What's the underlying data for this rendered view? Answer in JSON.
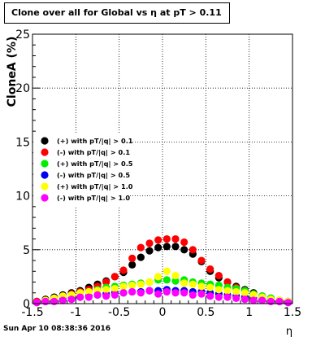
{
  "title": "Clone  over all for Global vs   η at pT > 0.11",
  "footer_date": "Sun Apr 10 08:38:36 2016",
  "chart_data": {
    "type": "scatter",
    "xlabel": "η",
    "ylabel": "CloneA (%)",
    "xlim": [
      -1.5,
      1.5
    ],
    "ylim": [
      0,
      25
    ],
    "xticks": [
      -1.5,
      -1,
      -0.5,
      0,
      0.5,
      1,
      1.5
    ],
    "xtick_labels": [
      "-1.5",
      "-1",
      "-0.5",
      "0",
      "0.5",
      "1",
      "1.5"
    ],
    "yticks": [
      0,
      5,
      10,
      15,
      20,
      25
    ],
    "ytick_labels": [
      "0",
      "5",
      "10",
      "15",
      "20",
      "25"
    ],
    "grid": true,
    "legend_position": "left",
    "series": [
      {
        "name": "(+) with pT/|q| > 0.1",
        "color": "#000000",
        "x": [
          -1.45,
          -1.35,
          -1.25,
          -1.15,
          -1.05,
          -0.95,
          -0.85,
          -0.75,
          -0.65,
          -0.55,
          -0.45,
          -0.35,
          -0.25,
          -0.15,
          -0.05,
          0.05,
          0.15,
          0.25,
          0.35,
          0.45,
          0.55,
          0.65,
          0.75,
          0.85,
          0.95,
          1.05,
          1.15,
          1.25,
          1.35,
          1.45
        ],
        "y": [
          0.2,
          0.4,
          0.6,
          0.8,
          1.0,
          1.2,
          1.5,
          1.8,
          2.1,
          2.5,
          2.9,
          3.6,
          4.3,
          4.9,
          5.2,
          5.3,
          5.3,
          5.0,
          4.6,
          3.9,
          3.0,
          2.4,
          2.0,
          1.6,
          1.3,
          1.0,
          0.7,
          0.5,
          0.3,
          0.2
        ]
      },
      {
        "name": "(-) with pT/|q| > 0.1",
        "color": "#ff0000",
        "x": [
          -1.45,
          -1.35,
          -1.25,
          -1.15,
          -1.05,
          -0.95,
          -0.85,
          -0.75,
          -0.65,
          -0.55,
          -0.45,
          -0.35,
          -0.25,
          -0.15,
          -0.05,
          0.05,
          0.15,
          0.25,
          0.35,
          0.45,
          0.55,
          0.65,
          0.75,
          0.85,
          0.95,
          1.05,
          1.15,
          1.25,
          1.35,
          1.45
        ],
        "y": [
          0.2,
          0.3,
          0.5,
          0.7,
          0.9,
          1.1,
          1.3,
          1.6,
          2.0,
          2.5,
          3.1,
          4.2,
          5.2,
          5.6,
          5.9,
          6.0,
          6.0,
          5.7,
          5.0,
          4.0,
          3.2,
          2.6,
          2.0,
          1.5,
          1.2,
          0.9,
          0.6,
          0.4,
          0.3,
          0.2
        ]
      },
      {
        "name": "(+) with pT/|q| > 0.5",
        "color": "#00ee00",
        "x": [
          -1.45,
          -1.35,
          -1.25,
          -1.15,
          -1.05,
          -0.95,
          -0.85,
          -0.75,
          -0.65,
          -0.55,
          -0.45,
          -0.35,
          -0.25,
          -0.15,
          -0.05,
          0.05,
          0.15,
          0.25,
          0.35,
          0.45,
          0.55,
          0.65,
          0.75,
          0.85,
          0.95,
          1.05,
          1.15,
          1.25,
          1.35,
          1.45
        ],
        "y": [
          0.1,
          0.3,
          0.4,
          0.6,
          0.8,
          1.0,
          1.1,
          1.3,
          1.5,
          1.6,
          1.7,
          1.8,
          1.9,
          2.0,
          2.2,
          2.2,
          2.1,
          2.2,
          2.0,
          1.9,
          1.8,
          1.7,
          1.5,
          1.4,
          1.2,
          0.9,
          0.7,
          0.5,
          0.3,
          0.2
        ]
      },
      {
        "name": "(-) with pT/|q| > 0.5",
        "color": "#0000ee",
        "x": [
          -1.45,
          -1.35,
          -1.25,
          -1.15,
          -1.05,
          -0.95,
          -0.85,
          -0.75,
          -0.65,
          -0.55,
          -0.45,
          -0.35,
          -0.25,
          -0.15,
          -0.05,
          0.05,
          0.15,
          0.25,
          0.35,
          0.45,
          0.55,
          0.65,
          0.75,
          0.85,
          0.95,
          1.05,
          1.15,
          1.25,
          1.35,
          1.45
        ],
        "y": [
          0.1,
          0.2,
          0.3,
          0.4,
          0.5,
          0.6,
          0.7,
          0.8,
          0.9,
          1.0,
          1.0,
          1.1,
          1.1,
          1.2,
          1.2,
          1.3,
          1.2,
          1.2,
          1.1,
          1.1,
          1.0,
          0.9,
          0.8,
          0.7,
          0.6,
          0.5,
          0.4,
          0.3,
          0.2,
          0.1
        ]
      },
      {
        "name": "(+) with pT/|q| > 1.0",
        "color": "#ffff00",
        "x": [
          -1.45,
          -1.35,
          -1.25,
          -1.15,
          -1.05,
          -0.95,
          -0.85,
          -0.75,
          -0.65,
          -0.55,
          -0.45,
          -0.35,
          -0.25,
          -0.15,
          -0.05,
          0.05,
          0.15,
          0.25,
          0.35,
          0.45,
          0.55,
          0.65,
          0.75,
          0.85,
          0.95,
          1.05,
          1.15,
          1.25,
          1.35,
          1.45
        ],
        "y": [
          0.1,
          0.3,
          0.5,
          0.7,
          0.8,
          1.0,
          1.1,
          1.2,
          1.3,
          1.4,
          1.6,
          1.7,
          1.8,
          2.0,
          2.5,
          3.0,
          2.6,
          1.9,
          1.8,
          1.6,
          1.5,
          1.3,
          1.2,
          1.1,
          1.0,
          0.8,
          0.6,
          0.4,
          0.3,
          0.2
        ]
      },
      {
        "name": "(-) with pT/|q| > 1.0",
        "color": "#ff00ff",
        "x": [
          -1.45,
          -1.35,
          -1.25,
          -1.15,
          -1.05,
          -0.95,
          -0.85,
          -0.75,
          -0.65,
          -0.55,
          -0.45,
          -0.35,
          -0.25,
          -0.15,
          -0.05,
          0.05,
          0.15,
          0.25,
          0.35,
          0.45,
          0.55,
          0.65,
          0.75,
          0.85,
          0.95,
          1.05,
          1.15,
          1.25,
          1.35,
          1.45
        ],
        "y": [
          0.1,
          0.2,
          0.2,
          0.3,
          0.4,
          0.6,
          0.6,
          0.8,
          0.7,
          0.8,
          1.0,
          1.1,
          1.0,
          1.2,
          0.9,
          1.1,
          1.0,
          1.0,
          0.8,
          0.9,
          0.7,
          0.6,
          0.6,
          0.5,
          0.4,
          0.3,
          0.3,
          0.2,
          0.2,
          0.1
        ]
      }
    ]
  }
}
